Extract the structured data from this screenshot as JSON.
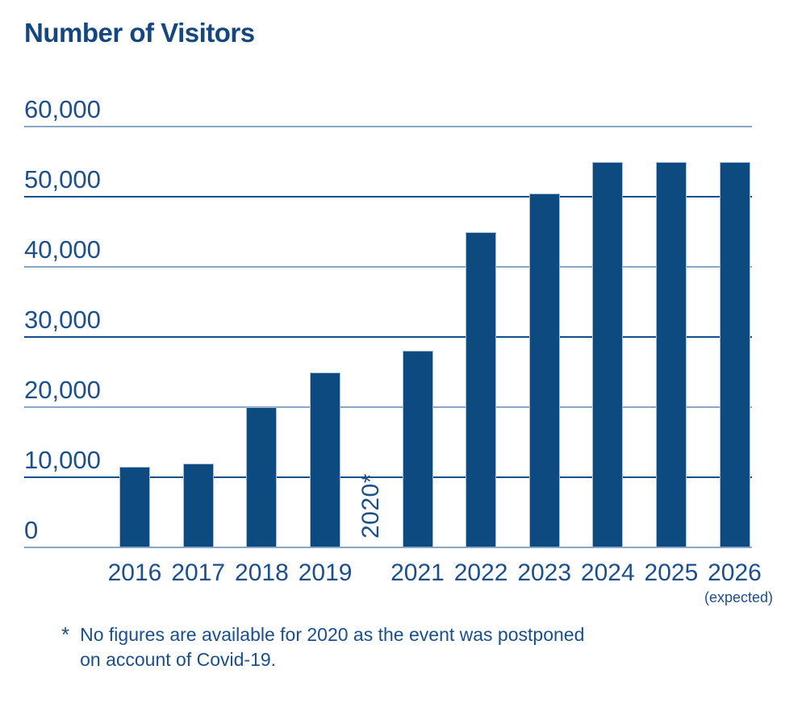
{
  "title": "Number of Visitors",
  "chart_data": {
    "type": "bar",
    "title": "Number of Visitors",
    "categories": [
      "2016",
      "2017",
      "2018",
      "2019",
      "2020",
      "2021",
      "2022",
      "2023",
      "2024",
      "2025",
      "2026"
    ],
    "values": [
      11500,
      12000,
      20000,
      25000,
      null,
      28000,
      45000,
      50500,
      55000,
      55000,
      55000
    ],
    "missing_label": "2020*",
    "missing_category": "2020",
    "xlabel": "",
    "ylabel": "",
    "ylim": [
      0,
      60000
    ],
    "ytick_values": [
      60000,
      50000,
      40000,
      30000,
      20000,
      10000,
      0
    ],
    "ytick_labels": [
      "60,000",
      "50,000",
      "40,000",
      "30,000",
      "20,000",
      "10,000",
      "0"
    ],
    "grid": true,
    "legend": "none",
    "expected_note": "(expected)",
    "expected_note_category": "2026",
    "colors": {
      "bar": "#0d4a80",
      "bar_edge": "#a9bdd5",
      "grid_dark": "#134e8c",
      "grid_light": "#8aa6c5",
      "text": "#1d4f8d",
      "title": "#14477e"
    }
  },
  "footnote": {
    "marker": "*",
    "lines": [
      "No figures are available for 2020 as the event was postponed",
      "on account of Covid-19."
    ]
  }
}
